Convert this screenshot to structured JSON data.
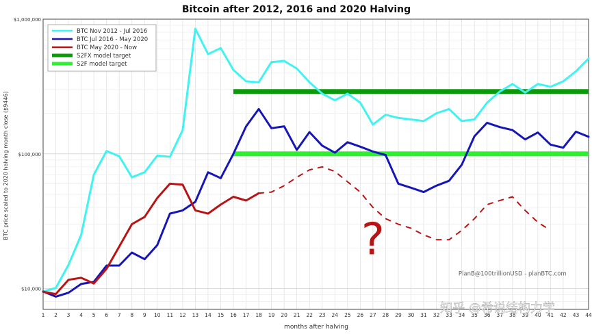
{
  "chart_data": {
    "type": "line",
    "title": "Bitcoin after 2012, 2016 and 2020 Halving",
    "xlabel": "months after halving",
    "ylabel": "BTC price scaled to 2020 halving month close ($9446)",
    "yscale": "log",
    "ylim": [
      7000,
      1000000
    ],
    "xlim": [
      1,
      44
    ],
    "y_ticks": [
      {
        "value": 10000,
        "label": "$10,000"
      },
      {
        "value": 100000,
        "label": "$100,000"
      },
      {
        "value": 1000000,
        "label": "$1,000,000"
      }
    ],
    "x_ticks": [
      "1",
      "2",
      "3",
      "4",
      "5",
      "6",
      "7",
      "8",
      "9",
      "10",
      "11",
      "12",
      "13",
      "14",
      "15",
      "16",
      "17",
      "18",
      "19",
      "20",
      "21",
      "22",
      "23",
      "24",
      "25",
      "26",
      "27",
      "28",
      "29",
      "30",
      "31",
      "32",
      "33",
      "34",
      "35",
      "36",
      "37",
      "38",
      "39",
      "40",
      "41",
      "42",
      "43",
      "44"
    ],
    "grid": true,
    "legend_position": "top-left",
    "series": [
      {
        "name": "BTC Nov 2012 - Jul 2016",
        "color": "#3ff3f3",
        "style": "solid",
        "x": [
          1,
          2,
          3,
          4,
          5,
          6,
          7,
          8,
          9,
          10,
          11,
          12,
          13,
          14,
          15,
          16,
          17,
          18,
          19,
          20,
          21,
          22,
          23,
          24,
          25,
          26,
          27,
          28,
          29,
          30,
          31,
          32,
          33,
          34,
          35,
          36,
          37,
          38,
          39,
          40,
          41,
          42,
          43,
          44
        ],
        "values": [
          9500,
          10100,
          15000,
          25000,
          70000,
          105000,
          96000,
          67000,
          73000,
          97000,
          95000,
          150000,
          850000,
          550000,
          610000,
          420000,
          345000,
          340000,
          480000,
          490000,
          430000,
          340000,
          280000,
          250000,
          280000,
          240000,
          165000,
          195000,
          185000,
          180000,
          175000,
          200000,
          215000,
          175000,
          180000,
          240000,
          290000,
          330000,
          285000,
          330000,
          315000,
          345000,
          410000,
          510000
        ]
      },
      {
        "name": "BTC Jul 2016 - May 2020",
        "color": "#1515b8",
        "style": "solid",
        "x": [
          1,
          2,
          3,
          4,
          5,
          6,
          7,
          8,
          9,
          10,
          11,
          12,
          13,
          14,
          15,
          16,
          17,
          18,
          19,
          20,
          21,
          22,
          23,
          24,
          25,
          26,
          27,
          28,
          29,
          30,
          31,
          32,
          33,
          34,
          35,
          36,
          37,
          38,
          39,
          40,
          41,
          42,
          43,
          44
        ],
        "values": [
          9500,
          8700,
          9300,
          10800,
          11200,
          14800,
          14800,
          18500,
          16500,
          21000,
          36000,
          38000,
          44000,
          73000,
          66000,
          100000,
          160000,
          215000,
          155000,
          160000,
          107000,
          145000,
          115000,
          102000,
          122000,
          113000,
          104000,
          98000,
          60000,
          56000,
          52000,
          58000,
          63000,
          83000,
          135000,
          170000,
          158000,
          150000,
          128000,
          144000,
          117000,
          111000,
          146000,
          134000
        ]
      },
      {
        "name": "BTC May 2020 - Now",
        "color": "#b81414",
        "style": "solid",
        "x": [
          1,
          2,
          3,
          4,
          5,
          6,
          7,
          8,
          9,
          10,
          11,
          12,
          13,
          14,
          15,
          16,
          17,
          18
        ],
        "values": [
          9446,
          9100,
          11600,
          12000,
          10900,
          14000,
          20500,
          30000,
          34000,
          47000,
          60000,
          59000,
          38000,
          36000,
          42000,
          48000,
          45000,
          51000
        ]
      },
      {
        "name": "",
        "color": "#b81414",
        "style": "dashed",
        "x": [
          18,
          19,
          20,
          21,
          22,
          23,
          24,
          25,
          26,
          27,
          28,
          29,
          30,
          31,
          32,
          33,
          34,
          35,
          36,
          37,
          38,
          39,
          40,
          41
        ],
        "values": [
          51000,
          52000,
          58000,
          67000,
          76000,
          80000,
          74000,
          62000,
          52000,
          40000,
          33000,
          30000,
          28000,
          25000,
          23000,
          23000,
          27000,
          33000,
          42000,
          45000,
          48000,
          38000,
          31000,
          27000
        ]
      },
      {
        "name": "S2FX model target",
        "color": "#0a9a0a",
        "style": "thick",
        "x": [
          16,
          44
        ],
        "values": [
          290000,
          290000
        ]
      },
      {
        "name": "S2F model target",
        "color": "#2ef02e",
        "style": "thick",
        "x": [
          16,
          44
        ],
        "values": [
          100000,
          100000
        ]
      }
    ],
    "annotations": [
      {
        "text": "?",
        "color": "#b81414",
        "x": 27,
        "y": 18000
      },
      {
        "text": "PlanB@100trillionUSD - planBTC.com",
        "color": "#666666",
        "x": 38,
        "y": 12500
      }
    ]
  },
  "watermark": "知乎 @希说结构力学"
}
